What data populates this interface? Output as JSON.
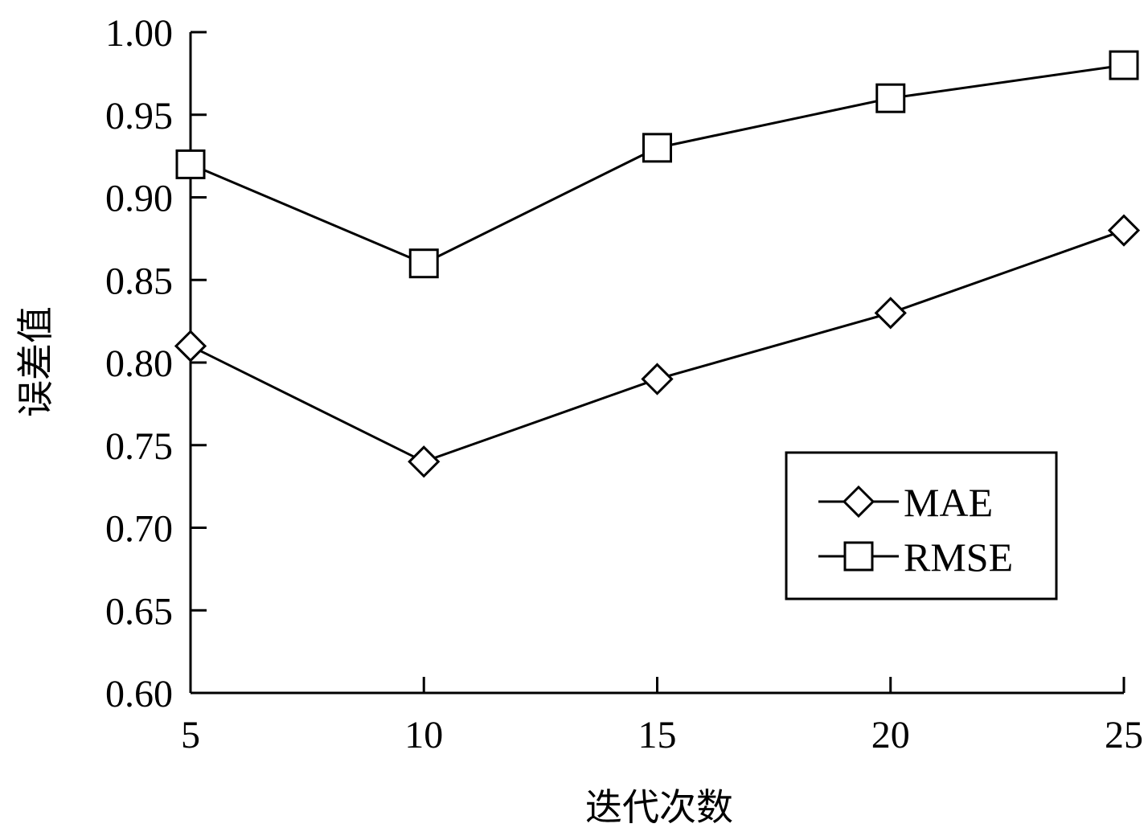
{
  "chart_data": {
    "type": "line",
    "title": "",
    "xlabel": "迭代次数",
    "ylabel": "误差值",
    "x": [
      5,
      10,
      15,
      20,
      25
    ],
    "x_ticks": [
      "5",
      "10",
      "15",
      "20",
      "25"
    ],
    "y_ticks": [
      "0.60",
      "0.65",
      "0.70",
      "0.75",
      "0.80",
      "0.85",
      "0.90",
      "0.95",
      "1.00"
    ],
    "xlim": [
      5,
      25
    ],
    "ylim": [
      0.6,
      1.0
    ],
    "grid": false,
    "legend_position": "lower-right",
    "series": [
      {
        "name": "MAE",
        "marker": "diamond",
        "values": [
          0.81,
          0.74,
          0.79,
          0.83,
          0.88
        ]
      },
      {
        "name": "RMSE",
        "marker": "square",
        "values": [
          0.92,
          0.86,
          0.93,
          0.96,
          0.98
        ]
      }
    ],
    "colors": {
      "line": "#000000",
      "marker_fill": "#ffffff"
    }
  }
}
